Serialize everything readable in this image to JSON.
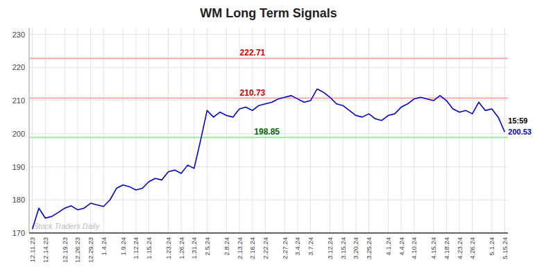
{
  "chart_data": {
    "type": "line",
    "title": "WM Long Term Signals",
    "color": "#0000cc",
    "categories": [
      "12.11.23",
      null,
      "12.14.23",
      null,
      null,
      "12.19.23",
      null,
      "12.26.23",
      null,
      "12.29.23",
      null,
      "1.4.24",
      null,
      null,
      "1.9.24",
      null,
      "1.12.24",
      null,
      "1.15.24",
      null,
      null,
      "1.23.24",
      null,
      "1.26.24",
      null,
      "1.31.24",
      null,
      "2.5.24",
      null,
      null,
      "2.8.24",
      null,
      "2.13.24",
      null,
      "2.16.24",
      null,
      "2.22.24",
      null,
      null,
      "2.27.24",
      null,
      "3.4.24",
      null,
      "3.7.24",
      null,
      null,
      "3.12.24",
      null,
      "3.15.24",
      null,
      "3.20.24",
      null,
      "3.25.24",
      null,
      null,
      "4.1.24",
      null,
      "4.4.24",
      null,
      "4.10.24",
      null,
      null,
      "4.15.24",
      null,
      "4.18.24",
      null,
      "4.23.24",
      null,
      "4.26.24",
      null,
      null,
      "5.1.24",
      null,
      "5.15.24"
    ],
    "values": [
      171.2,
      177.5,
      174.5,
      175.0,
      176.2,
      177.5,
      178.2,
      177.0,
      177.5,
      179.0,
      178.5,
      178.0,
      180.0,
      183.5,
      184.5,
      184.0,
      183.0,
      183.5,
      185.5,
      186.5,
      186.0,
      188.5,
      189.0,
      188.0,
      190.5,
      189.5,
      198.0,
      207.0,
      205.0,
      206.5,
      205.5,
      205.0,
      207.5,
      208.0,
      207.0,
      208.5,
      209.0,
      209.5,
      210.5,
      211.0,
      211.5,
      210.5,
      209.5,
      210.0,
      213.5,
      212.5,
      211.0,
      209.0,
      208.5,
      207.0,
      205.5,
      205.0,
      206.0,
      204.5,
      204.0,
      205.5,
      206.0,
      208.0,
      209.0,
      210.5,
      211.0,
      210.5,
      210.0,
      211.5,
      210.0,
      207.5,
      206.5,
      207.0,
      206.0,
      209.5,
      207.0,
      207.5,
      205.0,
      200.53
    ],
    "ylim": [
      170,
      232
    ],
    "yticks": [
      170,
      180,
      190,
      200,
      210,
      220,
      230
    ],
    "grid": true,
    "reference_lines": [
      {
        "value": 222.71,
        "color": "#ffaaaa",
        "label": "222.71",
        "label_color": "#cc0000"
      },
      {
        "value": 210.73,
        "color": "#ffaaaa",
        "label": "210.73",
        "label_color": "#cc0000"
      },
      {
        "value": 198.85,
        "color": "#99ee99",
        "label": "198.85",
        "label_color": "#006600"
      }
    ],
    "annotations": [
      {
        "text": "15:59",
        "color": "#000000"
      },
      {
        "text": "200.53",
        "color": "#0000cc"
      },
      {
        "text": "Stock Traders Daily",
        "color": "#bbbbbb"
      }
    ]
  }
}
